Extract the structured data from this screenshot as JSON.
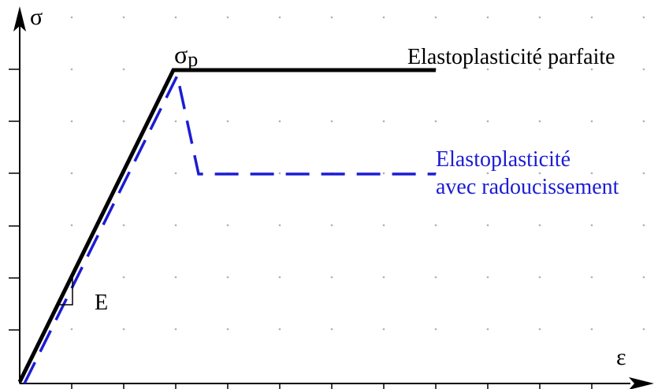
{
  "axes": {
    "y_label": "σ",
    "x_label": "ε"
  },
  "peak_label": {
    "main": "σ",
    "sub": "p"
  },
  "slope_label": "E",
  "curves": [
    {
      "label": "Elastoplasticité parfaite",
      "style": "solid",
      "color": "#000000"
    },
    {
      "label_lines": [
        "Elastoplasticité",
        "avec radoucissement"
      ],
      "style": "dashed",
      "color": "#1c1cd4"
    }
  ]
}
